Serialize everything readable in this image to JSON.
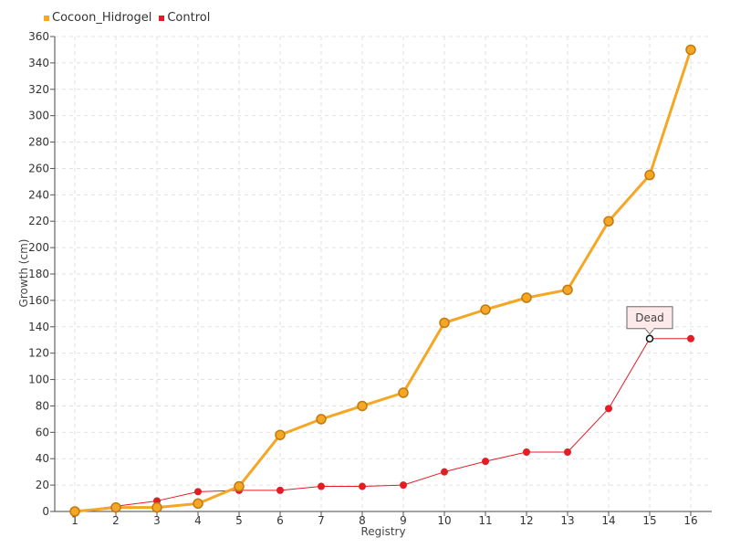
{
  "chart_data": {
    "type": "line",
    "title": "",
    "xlabel": "Registry",
    "ylabel": "Growth (cm)",
    "x": [
      1,
      2,
      3,
      4,
      5,
      6,
      7,
      8,
      9,
      10,
      11,
      12,
      13,
      14,
      15,
      16
    ],
    "ylim": [
      0,
      360
    ],
    "y_tick_step": 20,
    "grid": true,
    "legend_position": "top-left",
    "series": [
      {
        "name": "Cocoon_Hidrogel",
        "color": "#f5a623",
        "values": [
          0,
          3,
          3,
          6,
          19,
          58,
          70,
          80,
          90,
          143,
          153,
          162,
          168,
          220,
          255,
          350
        ]
      },
      {
        "name": "Control",
        "color": "#e31c25",
        "values": [
          0,
          4,
          8,
          15,
          16,
          16,
          19,
          19,
          20,
          30,
          38,
          45,
          45,
          78,
          131,
          131
        ]
      }
    ],
    "annotations": [
      {
        "series": "Control",
        "x": 15,
        "y": 131,
        "text": "Dead"
      }
    ]
  }
}
